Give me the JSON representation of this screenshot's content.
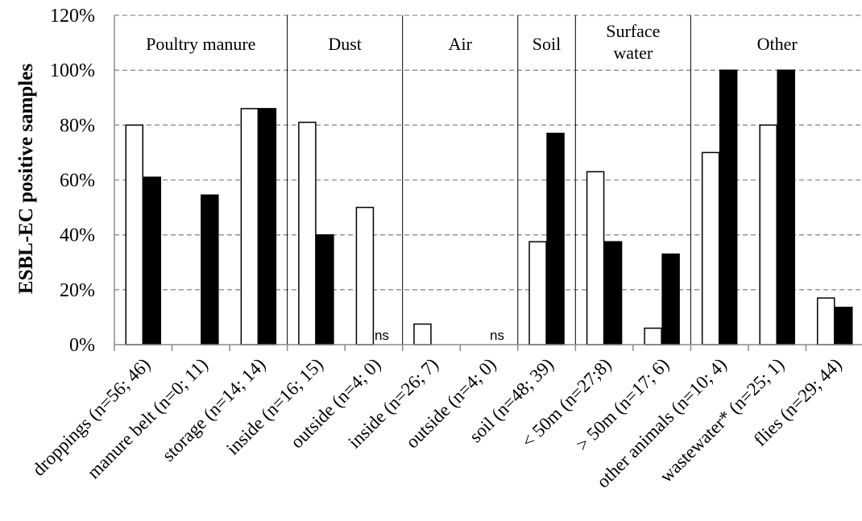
{
  "chart_data": {
    "type": "bar",
    "ylabel": "ESBL-EC positive samples",
    "ylim": [
      0,
      120
    ],
    "yticks": [
      "0%",
      "20%",
      "40%",
      "60%",
      "80%",
      "100%",
      "120%"
    ],
    "grid": "horizontal dashed",
    "groups": [
      {
        "label": "Poultry manure",
        "span": [
          0,
          2
        ]
      },
      {
        "label": "Dust",
        "span": [
          3,
          4
        ]
      },
      {
        "label": "Air",
        "span": [
          5,
          6
        ]
      },
      {
        "label": "Soil",
        "span": [
          7,
          7
        ]
      },
      {
        "label": "Surface water",
        "span": [
          8,
          9
        ]
      },
      {
        "label": "Other",
        "span": [
          10,
          12
        ]
      }
    ],
    "categories": [
      "droppings (n=56; 46)",
      "manure belt (n=0; 11)",
      "storage (n=14; 14)",
      "inside (n=16; 15)",
      "outside (n=4; 0)",
      "inside (n=26; 7)",
      "outside (n=4; 0)",
      "soil (n=48; 39)",
      "< 50m (n=27;8)",
      "> 50m (n=17; 6)",
      "other animals (n=10; 4)",
      "wastewater* (n=25; 1)",
      "flies (n=29; 44)"
    ],
    "series": [
      {
        "color": "#ffffff",
        "values": [
          80,
          null,
          86,
          81,
          50,
          7.5,
          null,
          37.5,
          63,
          6,
          70,
          80,
          17
        ]
      },
      {
        "color": "#000000",
        "values": [
          61,
          54.5,
          86,
          40,
          null,
          null,
          null,
          77,
          37.5,
          33,
          100,
          100,
          13.6
        ]
      }
    ],
    "annotations": [
      {
        "text": "ns",
        "category_index": 4
      },
      {
        "text": "ns",
        "category_index": 6
      }
    ]
  }
}
